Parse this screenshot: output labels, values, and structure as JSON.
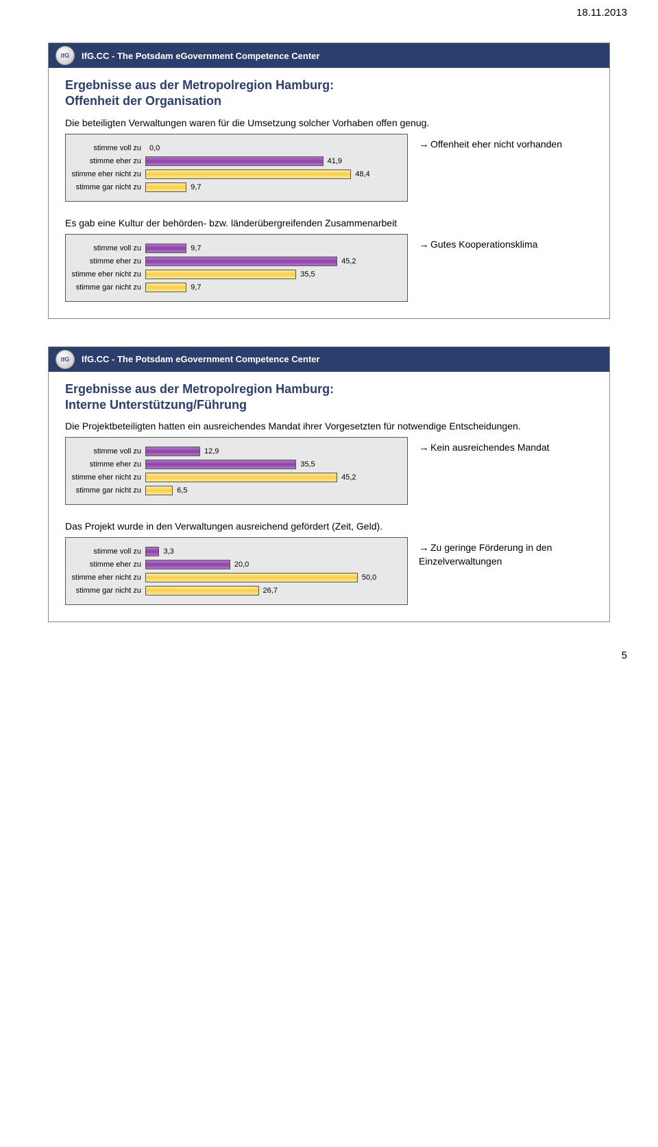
{
  "page_date": "18.11.2013",
  "page_number": "5",
  "header_text": "IfG.CC - The Potsdam eGovernment Competence Center",
  "logo_text": "IfG",
  "bar_colors": {
    "purple": "#9040a8",
    "yellow": "#f8cf4a"
  },
  "chart_bg": "#e8e8e8",
  "chart_border": "#555555",
  "slide1": {
    "title_line1": "Ergebnisse aus der Metropolregion Hamburg:",
    "title_line2": "Offenheit der Organisation",
    "prompt1": "Die beteiligten Verwaltungen waren für die Umsetzung solcher Vorhaben offen genug.",
    "annotation1": "Offenheit eher nicht vorhanden",
    "chart1": {
      "max": 60,
      "rows": [
        {
          "label": "stimme voll zu",
          "value": "0,0",
          "pct": 0.0,
          "color": "purple"
        },
        {
          "label": "stimme eher zu",
          "value": "41,9",
          "pct": 69.8,
          "color": "purple"
        },
        {
          "label": "stimme eher nicht zu",
          "value": "48,4",
          "pct": 80.7,
          "color": "yellow"
        },
        {
          "label": "stimme gar nicht zu",
          "value": "9,7",
          "pct": 16.2,
          "color": "yellow"
        }
      ]
    },
    "prompt2": "Es gab eine Kultur der behörden- bzw. länderübergreifenden Zusammenarbeit",
    "annotation2": "Gutes Kooperationsklima",
    "chart2": {
      "max": 60,
      "rows": [
        {
          "label": "stimme voll zu",
          "value": "9,7",
          "pct": 16.2,
          "color": "purple"
        },
        {
          "label": "stimme eher zu",
          "value": "45,2",
          "pct": 75.3,
          "color": "purple"
        },
        {
          "label": "stimme eher nicht zu",
          "value": "35,5",
          "pct": 59.2,
          "color": "yellow"
        },
        {
          "label": "stimme gar nicht zu",
          "value": "9,7",
          "pct": 16.2,
          "color": "yellow"
        }
      ]
    }
  },
  "slide2": {
    "title_line1": "Ergebnisse aus der Metropolregion Hamburg:",
    "title_line2": "Interne Unterstützung/Führung",
    "prompt1": "Die Projektbeteiligten hatten ein ausreichendes Mandat ihrer Vorgesetzten für notwendige Entscheidungen.",
    "annotation1": "Kein ausreichendes Mandat",
    "chart1": {
      "max": 60,
      "rows": [
        {
          "label": "stimme voll zu",
          "value": "12,9",
          "pct": 21.5,
          "color": "purple"
        },
        {
          "label": "stimme eher zu",
          "value": "35,5",
          "pct": 59.2,
          "color": "purple"
        },
        {
          "label": "stimme eher nicht zu",
          "value": "45,2",
          "pct": 75.3,
          "color": "yellow"
        },
        {
          "label": "stimme gar nicht zu",
          "value": "6,5",
          "pct": 10.8,
          "color": "yellow"
        }
      ]
    },
    "prompt2": "Das Projekt wurde in den Verwaltungen ausreichend gefördert (Zeit, Geld).",
    "annotation2": "Zu geringe Förderung in den Einzelverwaltungen",
    "chart2": {
      "max": 60,
      "rows": [
        {
          "label": "stimme voll zu",
          "value": "3,3",
          "pct": 5.5,
          "color": "purple"
        },
        {
          "label": "stimme eher zu",
          "value": "20,0",
          "pct": 33.3,
          "color": "purple"
        },
        {
          "label": "stimme eher nicht zu",
          "value": "50,0",
          "pct": 83.3,
          "color": "yellow"
        },
        {
          "label": "stimme gar nicht zu",
          "value": "26,7",
          "pct": 44.5,
          "color": "yellow"
        }
      ]
    }
  }
}
